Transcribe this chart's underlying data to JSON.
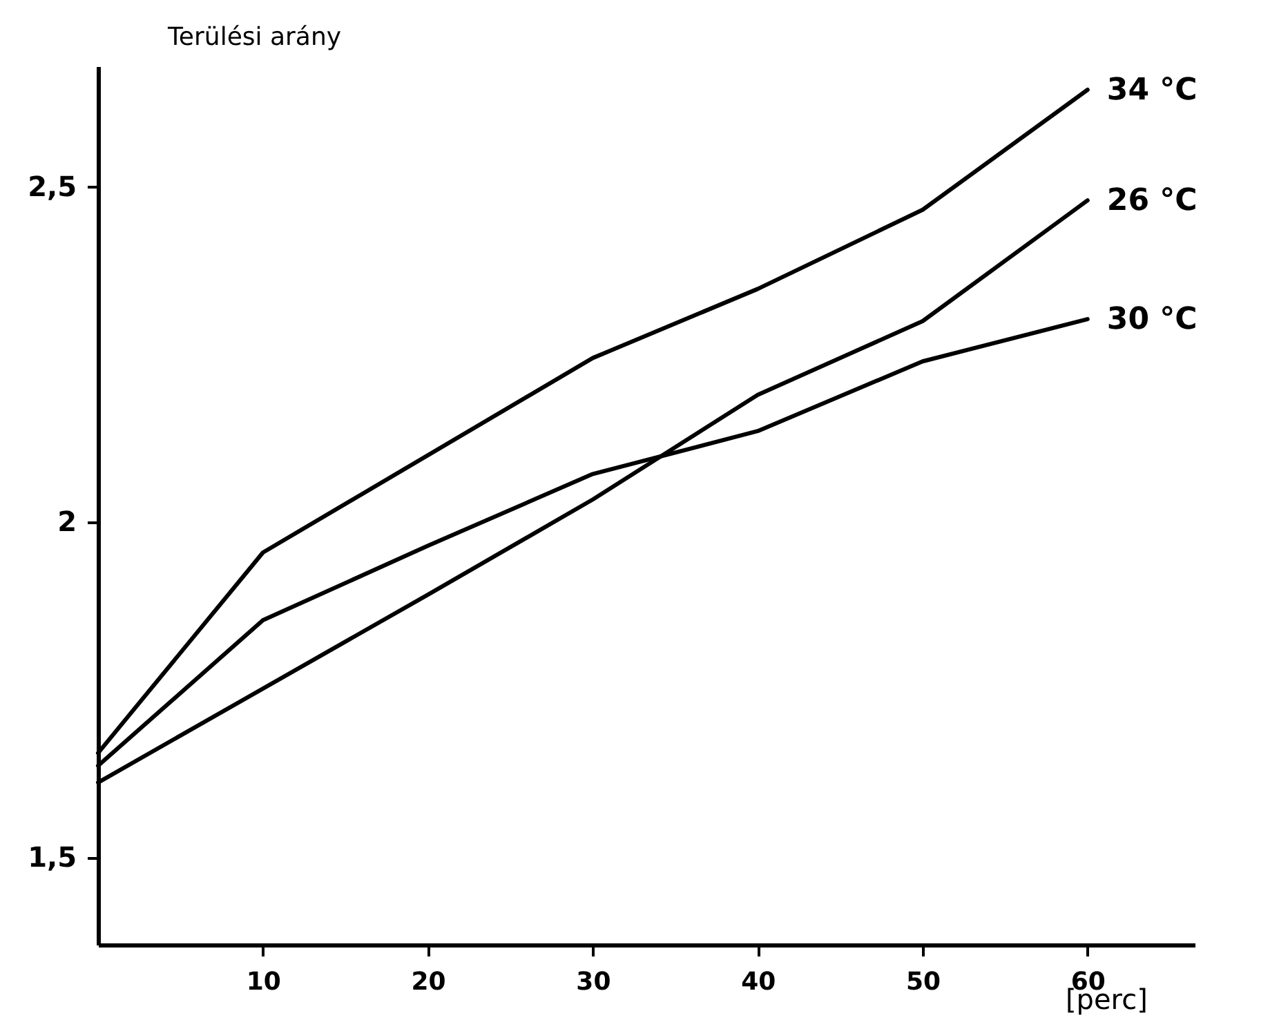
{
  "chart_data": {
    "type": "line",
    "xlabel": "[perc]",
    "ylabel": "Terülési arány",
    "xlim": [
      0,
      66.5
    ],
    "ylim": [
      1.37,
      2.68
    ],
    "xticks": [
      10,
      20,
      30,
      40,
      50,
      60
    ],
    "yticks": [
      {
        "value": 1.5,
        "label": "1,5"
      },
      2,
      {
        "value": 2.5,
        "label": "2,5"
      }
    ],
    "grid": false,
    "legend": false,
    "series": [
      {
        "name": "34 °C",
        "color": "#000000",
        "x": [
          0,
          10,
          30,
          40,
          50,
          60
        ],
        "values": [
          1.656,
          1.955,
          2.245,
          2.348,
          2.466,
          2.645
        ]
      },
      {
        "name": "26 °C",
        "color": "#000000",
        "x": [
          0,
          20,
          30,
          40,
          50,
          60
        ],
        "values": [
          1.612,
          1.892,
          2.034,
          2.19,
          2.3,
          2.48
        ]
      },
      {
        "name": "30 °C",
        "color": "#000000",
        "x": [
          0,
          10,
          20,
          30,
          40,
          50,
          60
        ],
        "values": [
          1.637,
          1.854,
          1.965,
          2.072,
          2.136,
          2.24,
          2.303
        ]
      }
    ]
  }
}
